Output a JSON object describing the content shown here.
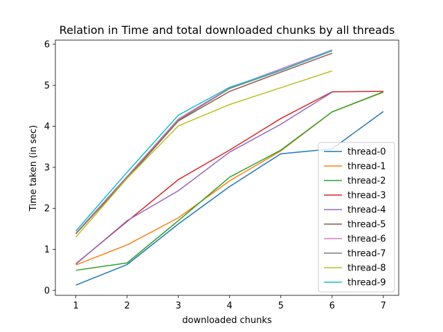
{
  "chart_data": {
    "type": "line",
    "title": "Relation in Time and total downloaded chunks by all threads",
    "xlabel": "downloaded chunks",
    "ylabel": "Time taken (in sec)",
    "xlim": [
      0.6,
      7.3
    ],
    "ylim": [
      -0.12,
      6.1
    ],
    "xticks": [
      1,
      2,
      3,
      4,
      5,
      6,
      7
    ],
    "yticks": [
      0,
      1,
      2,
      3,
      4,
      5,
      6
    ],
    "legend_position": "lower-right",
    "grid": false,
    "series": [
      {
        "name": "thread-0",
        "color": "#1f77b4",
        "x": [
          1,
          2,
          3,
          4,
          5,
          6,
          7
        ],
        "y": [
          0.13,
          0.63,
          1.62,
          2.53,
          3.33,
          3.45,
          4.36
        ]
      },
      {
        "name": "thread-1",
        "color": "#ff7f0e",
        "x": [
          1,
          2,
          3,
          4,
          5,
          6,
          7
        ],
        "y": [
          0.62,
          1.11,
          1.77,
          2.67,
          3.4,
          4.35,
          4.83
        ]
      },
      {
        "name": "thread-2",
        "color": "#2ca02c",
        "x": [
          1,
          2,
          3,
          4,
          5,
          6,
          7
        ],
        "y": [
          0.49,
          0.67,
          1.7,
          2.76,
          3.42,
          4.35,
          4.84
        ]
      },
      {
        "name": "thread-3",
        "color": "#d62728",
        "x": [
          1,
          2,
          3,
          4,
          5,
          6,
          7
        ],
        "y": [
          0.65,
          1.68,
          2.7,
          3.42,
          4.19,
          4.84,
          4.85
        ]
      },
      {
        "name": "thread-4",
        "color": "#9467bd",
        "x": [
          1,
          2,
          3,
          4,
          5,
          6
        ],
        "y": [
          0.64,
          1.7,
          2.43,
          3.37,
          4.05,
          4.83
        ]
      },
      {
        "name": "thread-5",
        "color": "#8c564b",
        "x": [
          1,
          2,
          3,
          4,
          5,
          6
        ],
        "y": [
          1.38,
          2.73,
          4.13,
          4.85,
          5.32,
          5.78
        ]
      },
      {
        "name": "thread-6",
        "color": "#e377c2",
        "x": [
          1,
          2,
          3,
          4,
          5,
          6
        ],
        "y": [
          1.4,
          2.78,
          4.18,
          4.93,
          5.4,
          5.86
        ]
      },
      {
        "name": "thread-7",
        "color": "#7f7f7f",
        "x": [
          1,
          2,
          3,
          4,
          5,
          6
        ],
        "y": [
          1.38,
          2.76,
          4.15,
          4.92,
          5.36,
          5.84
        ]
      },
      {
        "name": "thread-8",
        "color": "#bcbd22",
        "x": [
          1,
          2,
          3,
          4,
          5,
          6
        ],
        "y": [
          1.3,
          2.73,
          4.01,
          4.53,
          4.94,
          5.35
        ]
      },
      {
        "name": "thread-9",
        "color": "#17becf",
        "x": [
          1,
          2,
          3,
          4,
          5,
          6
        ],
        "y": [
          1.45,
          2.88,
          4.27,
          4.95,
          5.37,
          5.85
        ]
      }
    ]
  }
}
